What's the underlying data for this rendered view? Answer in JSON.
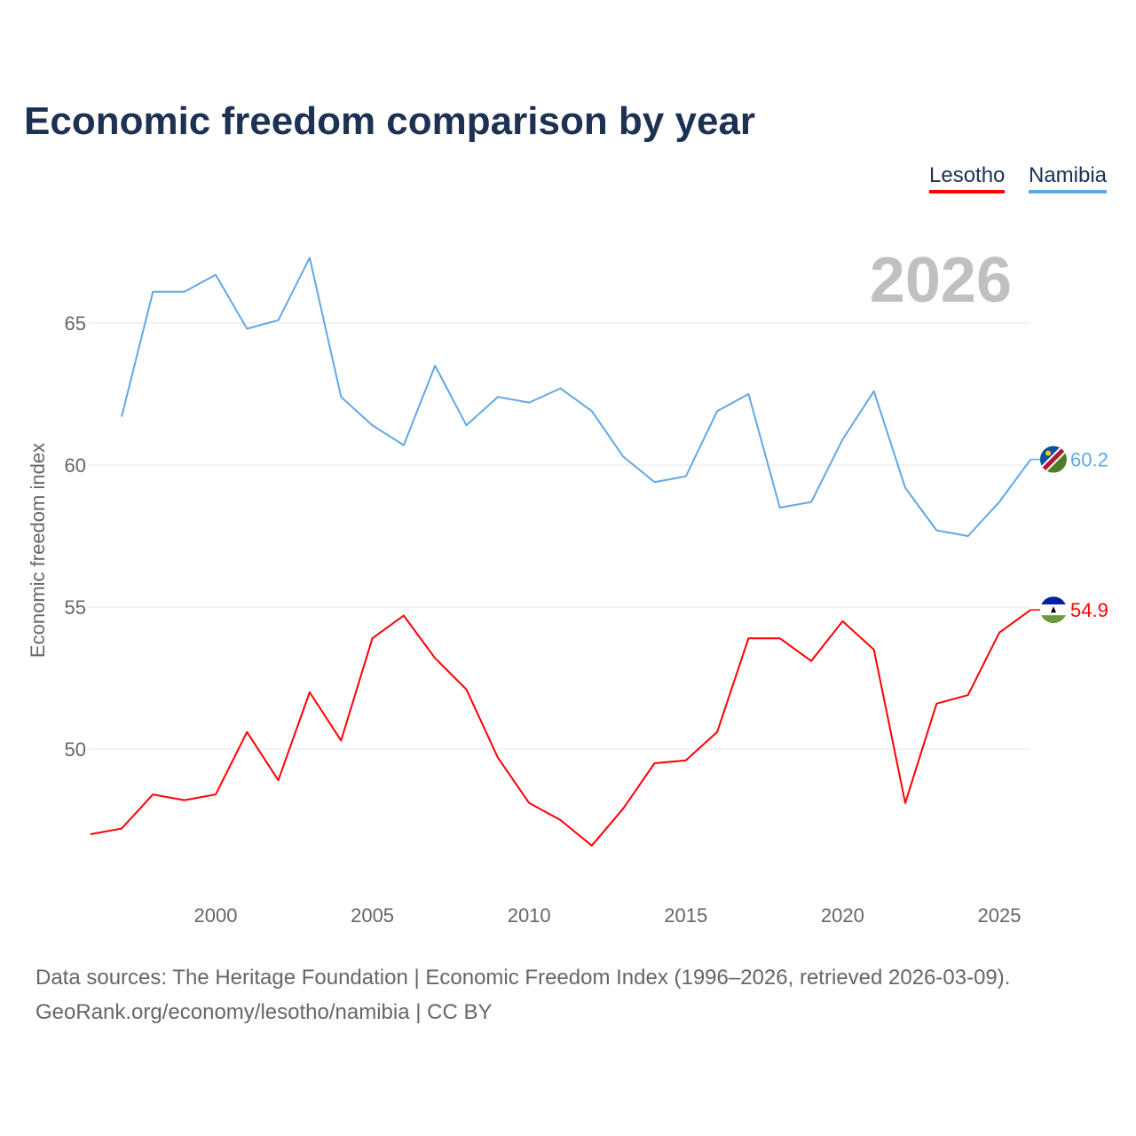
{
  "title": "Economic freedom comparison by year",
  "footer": {
    "line1": "Data sources: The Heritage Foundation | Economic Freedom Index (1996–2026, retrieved 2026-03-09).",
    "line2": "GeoRank.org/economy/lesotho/namibia | CC BY"
  },
  "chart_data": {
    "type": "line",
    "title": "Economic freedom comparison by year",
    "xlabel": "",
    "ylabel": "Economic freedom index",
    "year_label": "2026",
    "xlim": [
      1996,
      2026
    ],
    "ylim": [
      46,
      68
    ],
    "x_ticks": [
      2000,
      2005,
      2010,
      2015,
      2020,
      2025
    ],
    "y_ticks": [
      50,
      55,
      60,
      65
    ],
    "legend": "top-right",
    "series": [
      {
        "name": "Lesotho",
        "color": "#ff0000",
        "end_label": "54.9",
        "flag": "lesotho-flag",
        "x": [
          1996,
          1997,
          1998,
          1999,
          2000,
          2001,
          2002,
          2003,
          2004,
          2005,
          2006,
          2007,
          2008,
          2009,
          2010,
          2011,
          2012,
          2013,
          2014,
          2015,
          2016,
          2017,
          2018,
          2019,
          2020,
          2021,
          2022,
          2023,
          2024,
          2025,
          2026
        ],
        "values": [
          47.0,
          47.2,
          48.4,
          48.2,
          48.4,
          50.6,
          48.9,
          52.0,
          50.3,
          53.9,
          54.7,
          53.2,
          52.1,
          49.7,
          48.1,
          47.5,
          46.6,
          47.9,
          49.5,
          49.6,
          50.6,
          53.9,
          53.9,
          53.1,
          54.5,
          53.5,
          48.1,
          51.6,
          51.9,
          54.1,
          54.9
        ]
      },
      {
        "name": "Namibia",
        "color": "#5fa8e8",
        "end_label": "60.2",
        "flag": "namibia-flag",
        "x": [
          1997,
          1998,
          1999,
          2000,
          2001,
          2002,
          2003,
          2004,
          2005,
          2006,
          2007,
          2008,
          2009,
          2010,
          2011,
          2012,
          2013,
          2014,
          2015,
          2016,
          2017,
          2018,
          2019,
          2020,
          2021,
          2022,
          2023,
          2024,
          2025,
          2026
        ],
        "values": [
          61.7,
          66.1,
          66.1,
          66.7,
          64.8,
          65.1,
          67.3,
          62.4,
          61.4,
          60.7,
          63.5,
          61.4,
          62.4,
          62.2,
          62.7,
          61.9,
          60.3,
          59.4,
          59.6,
          61.9,
          62.5,
          58.5,
          58.7,
          60.9,
          62.6,
          59.2,
          57.7,
          57.5,
          58.7,
          60.2
        ]
      }
    ]
  }
}
